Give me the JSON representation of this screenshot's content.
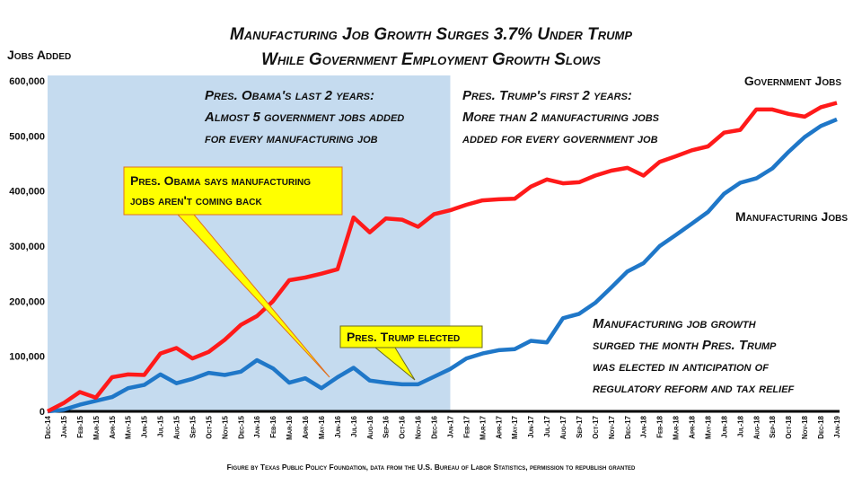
{
  "chart_data": {
    "type": "line",
    "title": [
      "Manufacturing Job Growth Surges 3.7% Under Trump",
      "While Government Employment Growth Slows"
    ],
    "ylabel": "Jobs Added",
    "ylim": [
      0,
      600000
    ],
    "yticks": [
      "0",
      "100,000",
      "200,000",
      "300,000",
      "400,000",
      "500,000",
      "600,000"
    ],
    "grid": false,
    "categories": [
      "Dec-14",
      "Jan-15",
      "Feb-15",
      "Mar-15",
      "Apr-15",
      "May-15",
      "Jun-15",
      "Jul-15",
      "Aug-15",
      "Sep-15",
      "Oct-15",
      "Nov-15",
      "Dec-15",
      "Jan-16",
      "Feb-16",
      "Mar-16",
      "Apr-16",
      "May-16",
      "Jun-16",
      "Jul-16",
      "Aug-16",
      "Sep-16",
      "Oct-16",
      "Nov-16",
      "Dec-16",
      "Jan-17",
      "Feb-17",
      "Mar-17",
      "Apr-17",
      "May-17",
      "Jun-17",
      "Jul-17",
      "Aug-17",
      "Sep-17",
      "Oct-17",
      "Nov-17",
      "Dec-17",
      "Jan-18",
      "Feb-18",
      "Mar-18",
      "Apr-18",
      "May-18",
      "Jun-18",
      "Jul-18",
      "Aug-18",
      "Sep-18",
      "Oct-18",
      "Nov-18",
      "Dec-18",
      "Jan-19"
    ],
    "series": [
      {
        "name": "Government Jobs",
        "color": "#ff1a1a",
        "values": [
          0,
          15000,
          35000,
          25000,
          62000,
          67000,
          66000,
          105000,
          115000,
          96000,
          108000,
          130000,
          157000,
          173000,
          200000,
          238000,
          243000,
          250000,
          258000,
          352000,
          325000,
          350000,
          348000,
          335000,
          358000,
          365000,
          375000,
          383000,
          385000,
          386000,
          408000,
          421000,
          414000,
          416000,
          428000,
          437000,
          442000,
          428000,
          453000,
          463000,
          474000,
          481000,
          506000,
          511000,
          548000,
          548000,
          540000,
          535000,
          552000,
          560000
        ]
      },
      {
        "name": "Manufacturing Jobs",
        "color": "#1f77c8",
        "values": [
          0,
          3000,
          12000,
          19000,
          26000,
          42000,
          48000,
          67000,
          51000,
          59000,
          70000,
          66000,
          72000,
          93000,
          78000,
          52000,
          60000,
          42000,
          62000,
          79000,
          56000,
          52000,
          49000,
          49000,
          63000,
          77000,
          96000,
          105000,
          111000,
          113000,
          128000,
          125000,
          169000,
          177000,
          197000,
          225000,
          254000,
          269000,
          300000,
          320000,
          341000,
          362000,
          395000,
          415000,
          423000,
          441000,
          471000,
          498000,
          518000,
          530000
        ]
      }
    ],
    "shaded_period": {
      "from": "Dec-14",
      "to": "Jan-17",
      "color": "#c5dbef"
    },
    "annotations": {
      "obama_period": [
        "Pres. Obama's last 2 years:",
        "Almost 5 government  jobs added",
        "for every manufacturing  job"
      ],
      "trump_period": [
        "Pres. Trump's first 2 years:",
        "More than 2 manufacturing  jobs",
        "added  for every government  job"
      ],
      "obama_callout": [
        "Pres. Obama says manufacturing",
        "jobs aren't coming back"
      ],
      "trump_callout": "Pres. Trump elected",
      "surge_note": [
        "Manufacturing  job  growth",
        "surged  the  month Pres. Trump",
        "was elected in anticipation  of",
        "regulatory  reform and tax relief"
      ],
      "callout_color": "#ffff00"
    },
    "footer": "Figure by Texas Public Policy Foundation, data from the U.S. Bureau of Labor Statistics, permission to republish granted"
  }
}
